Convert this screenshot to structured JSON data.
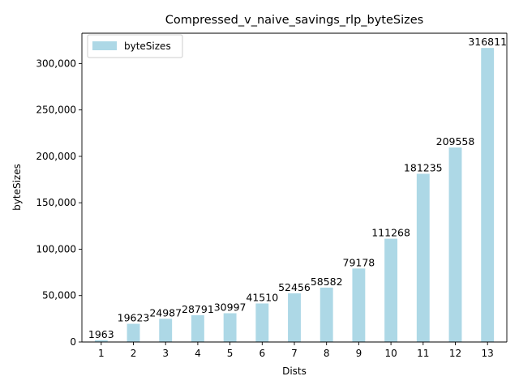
{
  "chart_data": {
    "type": "bar",
    "title": "Compressed_v_naive_savings_rlp_byteSizes",
    "xlabel": "Dists",
    "ylabel": "byteSizes",
    "categories": [
      "1",
      "2",
      "3",
      "4",
      "5",
      "6",
      "7",
      "8",
      "9",
      "10",
      "11",
      "12",
      "13"
    ],
    "series": [
      {
        "name": "byteSizes",
        "values": [
          1963,
          19623,
          24987,
          28791,
          30997,
          41510,
          52456,
          58582,
          79178,
          111268,
          181235,
          209558,
          316811
        ],
        "data_labels": [
          "1963",
          "19623",
          "24987",
          "28791",
          "30997",
          "41510",
          "52456",
          "58582",
          "79178",
          "111268",
          "181235",
          "209558",
          "316811"
        ],
        "color": "#add8e6"
      }
    ],
    "ylim": [
      0,
      332653
    ],
    "yticks": [
      0,
      50000,
      100000,
      150000,
      200000,
      250000,
      300000
    ],
    "ytick_labels": [
      "0",
      "50,000",
      "100,000",
      "150,000",
      "200,000",
      "250,000",
      "300,000"
    ],
    "grid": false,
    "legend": {
      "position": "top-left",
      "entries": [
        "byteSizes"
      ]
    }
  }
}
